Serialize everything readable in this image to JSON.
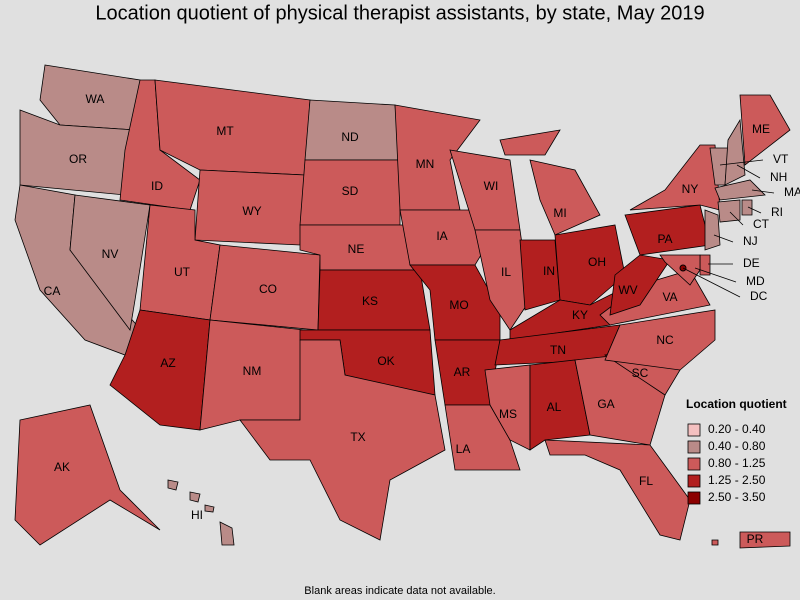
{
  "title": "Location quotient of physical therapist assistants, by state, May 2019",
  "footnote": "Blank areas indicate data not available.",
  "legend": {
    "title": "Location quotient",
    "items": [
      {
        "label": "0.20 - 0.40",
        "color": "#f4c0c0"
      },
      {
        "label": "0.40 - 0.80",
        "color": "#b98b88"
      },
      {
        "label": "0.80 - 1.25",
        "color": "#cc5a5a"
      },
      {
        "label": "1.25 - 2.50",
        "color": "#b21f1f"
      },
      {
        "label": "2.50 - 3.50",
        "color": "#8b0000"
      }
    ]
  },
  "states": [
    {
      "label": "WA",
      "color": "#b98b88"
    },
    {
      "label": "OR",
      "color": "#b98b88"
    },
    {
      "label": "CA",
      "color": "#b98b88"
    },
    {
      "label": "NV",
      "color": "#b98b88"
    },
    {
      "label": "ID",
      "color": "#cc5a5a"
    },
    {
      "label": "MT",
      "color": "#cc5a5a"
    },
    {
      "label": "WY",
      "color": "#cc5a5a"
    },
    {
      "label": "UT",
      "color": "#cc5a5a"
    },
    {
      "label": "CO",
      "color": "#cc5a5a"
    },
    {
      "label": "AZ",
      "color": "#b21f1f"
    },
    {
      "label": "NM",
      "color": "#cc5a5a"
    },
    {
      "label": "ND",
      "color": "#b98b88"
    },
    {
      "label": "SD",
      "color": "#cc5a5a"
    },
    {
      "label": "NE",
      "color": "#cc5a5a"
    },
    {
      "label": "KS",
      "color": "#b21f1f"
    },
    {
      "label": "OK",
      "color": "#b21f1f"
    },
    {
      "label": "TX",
      "color": "#cc5a5a"
    },
    {
      "label": "MN",
      "color": "#cc5a5a"
    },
    {
      "label": "IA",
      "color": "#cc5a5a"
    },
    {
      "label": "MO",
      "color": "#b21f1f"
    },
    {
      "label": "AR",
      "color": "#b21f1f"
    },
    {
      "label": "LA",
      "color": "#cc5a5a"
    },
    {
      "label": "WI",
      "color": "#cc5a5a"
    },
    {
      "label": "IL",
      "color": "#cc5a5a"
    },
    {
      "label": "MI",
      "color": "#cc5a5a"
    },
    {
      "label": "IN",
      "color": "#b21f1f"
    },
    {
      "label": "OH",
      "color": "#b21f1f"
    },
    {
      "label": "KY",
      "color": "#b21f1f"
    },
    {
      "label": "TN",
      "color": "#b21f1f"
    },
    {
      "label": "MS",
      "color": "#cc5a5a"
    },
    {
      "label": "AL",
      "color": "#b21f1f"
    },
    {
      "label": "GA",
      "color": "#cc5a5a"
    },
    {
      "label": "FL",
      "color": "#cc5a5a"
    },
    {
      "label": "SC",
      "color": "#cc5a5a"
    },
    {
      "label": "NC",
      "color": "#cc5a5a"
    },
    {
      "label": "VA",
      "color": "#cc5a5a"
    },
    {
      "label": "WV",
      "color": "#b21f1f"
    },
    {
      "label": "PA",
      "color": "#b21f1f"
    },
    {
      "label": "NY",
      "color": "#cc5a5a"
    },
    {
      "label": "ME",
      "color": "#cc5a5a"
    },
    {
      "label": "VT",
      "color": "#b98b88"
    },
    {
      "label": "NH",
      "color": "#b98b88"
    },
    {
      "label": "MA",
      "color": "#b98b88"
    },
    {
      "label": "RI",
      "color": "#b98b88"
    },
    {
      "label": "CT",
      "color": "#b98b88"
    },
    {
      "label": "NJ",
      "color": "#b98b88"
    },
    {
      "label": "DE",
      "color": "#cc5a5a"
    },
    {
      "label": "MD",
      "color": "#cc5a5a"
    },
    {
      "label": "DC",
      "color": "#8b0000"
    },
    {
      "label": "AK",
      "color": "#cc5a5a"
    },
    {
      "label": "HI",
      "color": "#b98b88"
    },
    {
      "label": "PR",
      "color": "#cc5a5a"
    }
  ]
}
